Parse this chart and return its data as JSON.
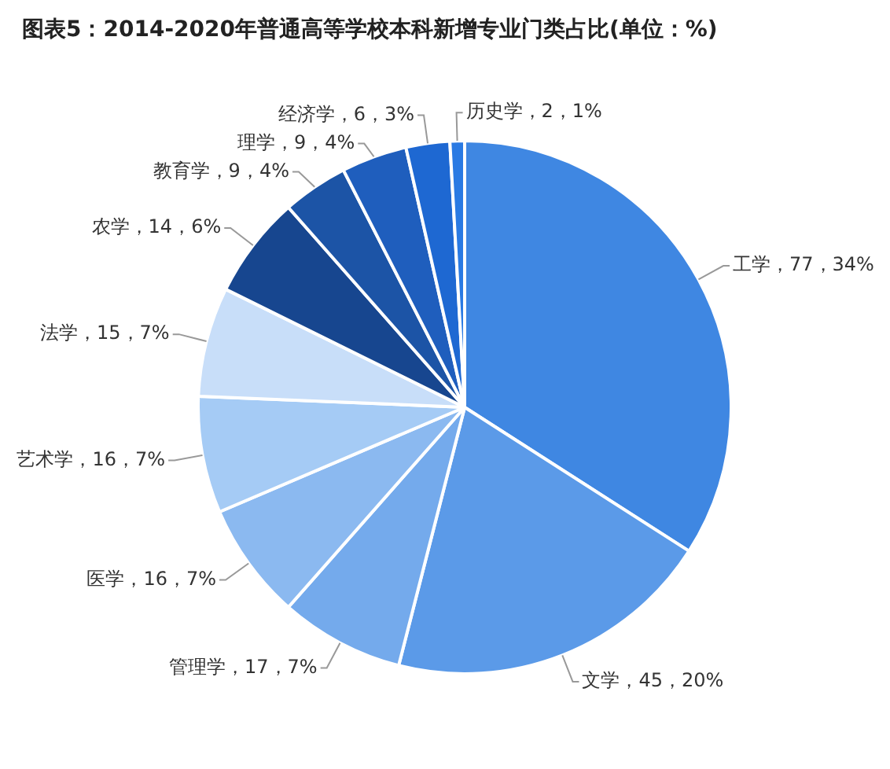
{
  "chart_data": {
    "type": "pie",
    "title": "图表5：2014-2020年普通高等学校本科新增专业门类占比(单位：%)",
    "categories": [
      "工学",
      "文学",
      "管理学",
      "医学",
      "艺术学",
      "法学",
      "农学",
      "教育学",
      "理学",
      "经济学",
      "历史学"
    ],
    "values": [
      77,
      45,
      17,
      16,
      16,
      15,
      14,
      9,
      9,
      6,
      2
    ],
    "value_labels": [
      "77，34%",
      "45，20%",
      "17，7%",
      "16，7%",
      "16，7%",
      "15，7%",
      "14，6%",
      "9，4%",
      "9，4%",
      "6，3%",
      "2，1%"
    ],
    "colors": [
      "#3f87e2",
      "#5b9ae8",
      "#74aaec",
      "#8bb9f0",
      "#a5cbf5",
      "#c8def9",
      "#17468f",
      "#1c54a6",
      "#1f5ebd",
      "#1e68d2",
      "#2a7ae3"
    ],
    "legend": false
  }
}
